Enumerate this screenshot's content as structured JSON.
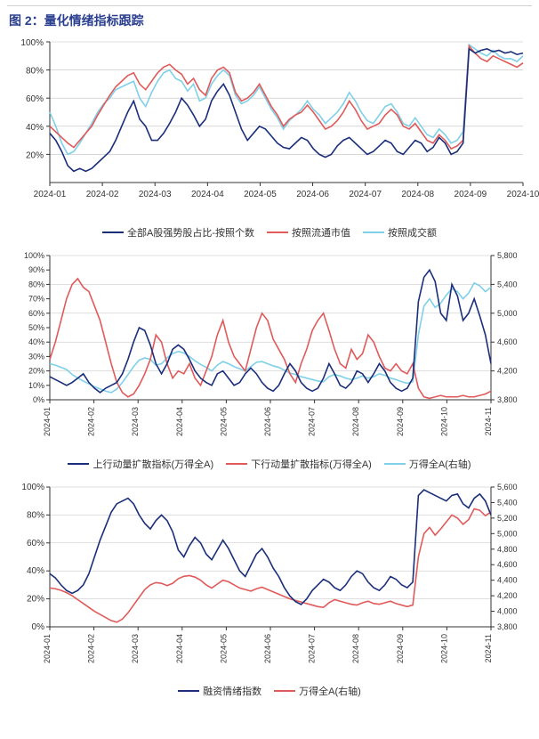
{
  "figure_title": "图 2：量化情绪指标跟踪",
  "colors": {
    "navy": "#1a2e7a",
    "red": "#e05a5a",
    "cyan": "#7fd0e8",
    "axis": "#333333",
    "grid": "#bfbfbf",
    "bg": "#ffffff"
  },
  "chart1": {
    "type": "line",
    "ylim": [
      0,
      100
    ],
    "yticks": [
      20,
      40,
      60,
      80,
      100
    ],
    "ytick_labels": [
      "20%",
      "40%",
      "60%",
      "80%",
      "100%"
    ],
    "xticks": [
      "2024-01",
      "2024-02",
      "2024-03",
      "2024-04",
      "2024-05",
      "2024-06",
      "2024-07",
      "2024-08",
      "2024-09",
      "2024-10"
    ],
    "legend": [
      {
        "label": "全部A股强势股占比-按照个数",
        "color": "#1a2e7a"
      },
      {
        "label": "按照流通市值",
        "color": "#e05a5a"
      },
      {
        "label": "按照成交额",
        "color": "#7fd0e8"
      }
    ],
    "series": {
      "navy": [
        35,
        30,
        22,
        12,
        8,
        10,
        8,
        10,
        14,
        18,
        22,
        30,
        40,
        50,
        58,
        45,
        40,
        30,
        30,
        35,
        42,
        50,
        60,
        55,
        48,
        40,
        45,
        58,
        65,
        70,
        62,
        50,
        38,
        30,
        35,
        40,
        38,
        33,
        28,
        25,
        24,
        28,
        32,
        30,
        24,
        20,
        18,
        20,
        26,
        30,
        32,
        28,
        24,
        20,
        22,
        26,
        30,
        28,
        22,
        20,
        25,
        30,
        28,
        22,
        25,
        32,
        28,
        20,
        22,
        28,
        95,
        92,
        94,
        95,
        93,
        94,
        92,
        93,
        91,
        92
      ],
      "red": [
        40,
        36,
        32,
        28,
        25,
        30,
        35,
        40,
        48,
        55,
        62,
        68,
        72,
        76,
        78,
        70,
        66,
        72,
        78,
        82,
        84,
        80,
        77,
        70,
        74,
        66,
        62,
        74,
        80,
        82,
        78,
        64,
        58,
        60,
        64,
        70,
        62,
        54,
        48,
        40,
        45,
        48,
        50,
        55,
        50,
        44,
        38,
        40,
        44,
        50,
        58,
        52,
        44,
        38,
        40,
        42,
        48,
        52,
        48,
        40,
        38,
        42,
        36,
        30,
        28,
        34,
        30,
        24,
        26,
        30,
        97,
        92,
        88,
        86,
        90,
        88,
        86,
        84,
        82,
        85
      ],
      "cyan": [
        50,
        40,
        28,
        20,
        22,
        28,
        35,
        42,
        50,
        56,
        60,
        66,
        68,
        70,
        72,
        60,
        54,
        64,
        72,
        78,
        80,
        74,
        72,
        65,
        70,
        58,
        60,
        70,
        76,
        80,
        76,
        62,
        56,
        58,
        62,
        68,
        60,
        52,
        46,
        38,
        44,
        48,
        52,
        58,
        52,
        48,
        42,
        46,
        50,
        56,
        64,
        58,
        50,
        44,
        42,
        48,
        54,
        56,
        50,
        42,
        40,
        46,
        40,
        34,
        32,
        38,
        34,
        28,
        30,
        36,
        98,
        95,
        92,
        90,
        94,
        90,
        88,
        88,
        86,
        90
      ]
    }
  },
  "chart2": {
    "type": "line-dual-axis",
    "ylim_left": [
      0,
      100
    ],
    "yticks_left": [
      0,
      10,
      20,
      30,
      40,
      50,
      60,
      70,
      80,
      90,
      100
    ],
    "ytick_labels_left": [
      "0%",
      "10%",
      "20%",
      "30%",
      "40%",
      "50%",
      "60%",
      "70%",
      "80%",
      "90%",
      "100%"
    ],
    "ylim_right": [
      3800,
      5800
    ],
    "yticks_right": [
      3800,
      4200,
      4600,
      5000,
      5400,
      5800
    ],
    "ytick_labels_right": [
      "3,800",
      "4,200",
      "4,600",
      "5,000",
      "5,400",
      "5,800"
    ],
    "xticks": [
      "2024-01",
      "2024-02",
      "2024-03",
      "2024-04",
      "2024-05",
      "2024-06",
      "2024-07",
      "2024-08",
      "2024-09",
      "2024-10",
      "2024-11"
    ],
    "legend": [
      {
        "label": "上行动量扩散指标(万得全A)",
        "color": "#1a2e7a"
      },
      {
        "label": "下行动量扩散指标(万得全A)",
        "color": "#e05a5a"
      },
      {
        "label": "万得全A(右轴)",
        "color": "#7fd0e8"
      }
    ],
    "series_left": {
      "navy": [
        16,
        14,
        12,
        10,
        12,
        15,
        18,
        12,
        8,
        5,
        8,
        10,
        12,
        18,
        28,
        40,
        50,
        48,
        38,
        25,
        18,
        25,
        35,
        38,
        35,
        28,
        20,
        15,
        12,
        10,
        18,
        20,
        15,
        10,
        12,
        18,
        22,
        18,
        12,
        8,
        6,
        10,
        18,
        25,
        20,
        12,
        8,
        6,
        8,
        15,
        25,
        18,
        10,
        8,
        12,
        20,
        18,
        12,
        18,
        25,
        20,
        12,
        8,
        6,
        8,
        15,
        68,
        85,
        90,
        82,
        60,
        55,
        80,
        72,
        55,
        60,
        70,
        58,
        45,
        25
      ],
      "red": [
        28,
        40,
        55,
        70,
        80,
        84,
        78,
        75,
        65,
        55,
        40,
        25,
        12,
        5,
        2,
        4,
        10,
        18,
        28,
        45,
        40,
        25,
        15,
        20,
        18,
        25,
        15,
        10,
        20,
        30,
        45,
        55,
        40,
        30,
        25,
        20,
        35,
        50,
        60,
        55,
        42,
        35,
        28,
        18,
        12,
        25,
        35,
        48,
        55,
        60,
        48,
        35,
        25,
        22,
        35,
        28,
        32,
        45,
        40,
        30,
        22,
        20,
        25,
        20,
        18,
        25,
        8,
        2,
        1,
        2,
        3,
        2,
        2,
        2,
        3,
        2,
        2,
        3,
        4,
        6
      ]
    },
    "series_right": {
      "cyan": [
        4300,
        4280,
        4250,
        4220,
        4150,
        4100,
        4060,
        4020,
        3980,
        3950,
        3920,
        3900,
        3950,
        4040,
        4150,
        4260,
        4350,
        4380,
        4360,
        4280,
        4300,
        4380,
        4440,
        4470,
        4450,
        4400,
        4340,
        4290,
        4250,
        4200,
        4280,
        4330,
        4300,
        4260,
        4230,
        4200,
        4260,
        4320,
        4330,
        4300,
        4270,
        4250,
        4210,
        4170,
        4150,
        4120,
        4100,
        4080,
        4060,
        4050,
        4120,
        4150,
        4130,
        4100,
        4080,
        4100,
        4130,
        4100,
        4120,
        4160,
        4140,
        4100,
        4080,
        4050,
        4030,
        4050,
        4700,
        5100,
        5200,
        5080,
        5140,
        5250,
        5340,
        5300,
        5200,
        5280,
        5420,
        5380,
        5300,
        5360
      ]
    }
  },
  "chart3": {
    "type": "line-dual-axis",
    "ylim_left": [
      0,
      100
    ],
    "yticks_left": [
      0,
      20,
      40,
      60,
      80,
      100
    ],
    "ytick_labels_left": [
      "0%",
      "20%",
      "40%",
      "60%",
      "80%",
      "100%"
    ],
    "ylim_right": [
      3800,
      5600
    ],
    "yticks_right": [
      3800,
      4000,
      4200,
      4400,
      4600,
      4800,
      5000,
      5200,
      5400,
      5600
    ],
    "ytick_labels_right": [
      "3,800",
      "4,000",
      "4,200",
      "4,400",
      "4,600",
      "4,800",
      "5,000",
      "5,200",
      "5,400",
      "5,600"
    ],
    "xticks": [
      "2024-01",
      "2024-02",
      "2024-03",
      "2024-04",
      "2024-05",
      "2024-06",
      "2024-07",
      "2024-08",
      "2024-09",
      "2024-10",
      "2024-11"
    ],
    "legend": [
      {
        "label": "融资情绪指数",
        "color": "#1a2e7a"
      },
      {
        "label": "万得全A(右轴)",
        "color": "#e05a5a"
      }
    ],
    "series_left": {
      "navy": [
        38,
        35,
        30,
        26,
        24,
        26,
        30,
        38,
        50,
        62,
        72,
        82,
        88,
        90,
        92,
        88,
        80,
        74,
        70,
        76,
        80,
        76,
        68,
        55,
        50,
        58,
        64,
        60,
        52,
        48,
        55,
        62,
        56,
        48,
        40,
        36,
        44,
        52,
        56,
        50,
        42,
        36,
        28,
        22,
        18,
        16,
        20,
        26,
        30,
        34,
        32,
        28,
        26,
        30,
        36,
        40,
        38,
        32,
        28,
        26,
        30,
        36,
        34,
        30,
        28,
        32,
        94,
        98,
        96,
        94,
        92,
        90,
        94,
        95,
        88,
        85,
        92,
        95,
        90,
        80
      ]
    },
    "series_right": {
      "red": [
        4300,
        4290,
        4270,
        4240,
        4200,
        4150,
        4100,
        4050,
        4000,
        3960,
        3920,
        3880,
        3860,
        3900,
        3980,
        4080,
        4180,
        4280,
        4340,
        4370,
        4360,
        4330,
        4360,
        4420,
        4450,
        4460,
        4440,
        4400,
        4340,
        4300,
        4350,
        4400,
        4380,
        4340,
        4300,
        4280,
        4260,
        4290,
        4310,
        4280,
        4250,
        4220,
        4190,
        4160,
        4140,
        4120,
        4100,
        4080,
        4060,
        4050,
        4110,
        4150,
        4130,
        4110,
        4090,
        4080,
        4110,
        4130,
        4100,
        4090,
        4110,
        4130,
        4100,
        4080,
        4060,
        4080,
        4700,
        5000,
        5080,
        4980,
        5060,
        5150,
        5240,
        5200,
        5120,
        5180,
        5320,
        5300,
        5230,
        5280
      ]
    }
  }
}
